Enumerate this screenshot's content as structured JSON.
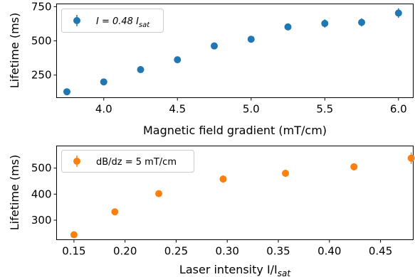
{
  "chart_data": [
    {
      "type": "scatter",
      "xlabel": "Magnetic field gradient (mT/cm)",
      "ylabel": "Lifetime (ms)",
      "xlim": [
        3.68,
        6.1
      ],
      "ylim": [
        85,
        770
      ],
      "xticks": [
        "4.0",
        "4.5",
        "5.0",
        "5.5",
        "6.0"
      ],
      "xtick_values": [
        4.0,
        4.5,
        5.0,
        5.5,
        6.0
      ],
      "yticks": [
        "250",
        "500",
        "750"
      ],
      "ytick_values": [
        250,
        500,
        750
      ],
      "legend_position": "top-left",
      "grid": false,
      "series": [
        {
          "name_parts": {
            "main": "I = 0.48 I",
            "sub": "sat"
          },
          "color": "#1f77b4",
          "x": [
            3.75,
            4.0,
            4.25,
            4.5,
            4.75,
            5.0,
            5.25,
            5.5,
            5.75,
            6.0
          ],
          "y": [
            128,
            200,
            290,
            362,
            463,
            512,
            602,
            627,
            635,
            703
          ],
          "yerr": [
            8,
            8,
            8,
            10,
            10,
            12,
            12,
            30,
            30,
            35
          ]
        }
      ]
    },
    {
      "type": "scatter",
      "xlabel_parts": {
        "main": "Laser intensity I/I",
        "sub": "sat"
      },
      "ylabel": "Lifetime (ms)",
      "xlim": [
        0.133,
        0.482
      ],
      "ylim": [
        225,
        585
      ],
      "xticks": [
        "0.15",
        "0.20",
        "0.25",
        "0.30",
        "0.35",
        "0.40",
        "0.45"
      ],
      "xtick_values": [
        0.15,
        0.2,
        0.25,
        0.3,
        0.35,
        0.4,
        0.45
      ],
      "yticks": [
        "300",
        "400",
        "500"
      ],
      "ytick_values": [
        300,
        400,
        500
      ],
      "legend_position": "top-left",
      "grid": false,
      "series": [
        {
          "name": "dB/dz = 5 mT/cm",
          "color": "#ff7f0e",
          "x": [
            0.15,
            0.19,
            0.233,
            0.296,
            0.357,
            0.424,
            0.48
          ],
          "y": [
            244,
            332,
            402,
            458,
            480,
            505,
            538
          ],
          "yerr": [
            4,
            5,
            6,
            14,
            14,
            14,
            22
          ]
        }
      ]
    }
  ]
}
